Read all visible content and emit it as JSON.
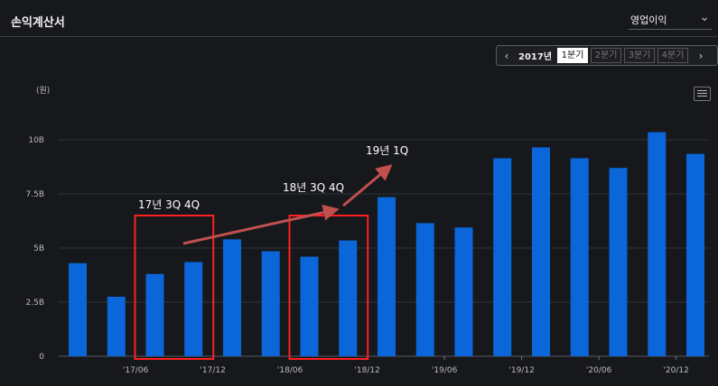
{
  "header": {
    "title": "손익계산서"
  },
  "metric_select": {
    "value": "영업이익",
    "chevron_icon": "chevron-down-icon"
  },
  "period_nav": {
    "year": "2017년",
    "quarters": [
      "1분기",
      "2분기",
      "3분기",
      "4분기"
    ],
    "active_quarter": 0,
    "prev_icon": "chevron-left-icon",
    "next_icon": "chevron-right-icon"
  },
  "chart_menu_icon": "hamburger-menu-icon",
  "colors": {
    "bar": "#0a66d9",
    "grid": "#30333a",
    "highlight": "#ff2020",
    "arrow": "#c0504d"
  },
  "chart_data": {
    "type": "bar",
    "unit_label": "(원)",
    "y_ticks": [
      "0",
      "2.5B",
      "5B",
      "7.5B",
      "10B"
    ],
    "y_tick_values": [
      0,
      2.5,
      5,
      7.5,
      10
    ],
    "ylim": [
      0,
      11.5
    ],
    "x_tick_labels": [
      "'17/06",
      "'17/12",
      "'18/06",
      "'18/12",
      "'19/06",
      "'19/12",
      "'20/06",
      "'20/12"
    ],
    "values": [
      4.3,
      2.75,
      3.8,
      4.35,
      5.4,
      4.85,
      4.6,
      5.35,
      7.35,
      6.15,
      5.95,
      9.15,
      9.65,
      9.15,
      8.7,
      10.35,
      9.35
    ],
    "value_unit": "B",
    "annotations": [
      {
        "text": "17년 3Q 4Q",
        "bars": [
          2,
          3
        ]
      },
      {
        "text": "18년 3Q 4Q",
        "bars": [
          6,
          7
        ]
      },
      {
        "text": "19년 1Q"
      }
    ]
  }
}
